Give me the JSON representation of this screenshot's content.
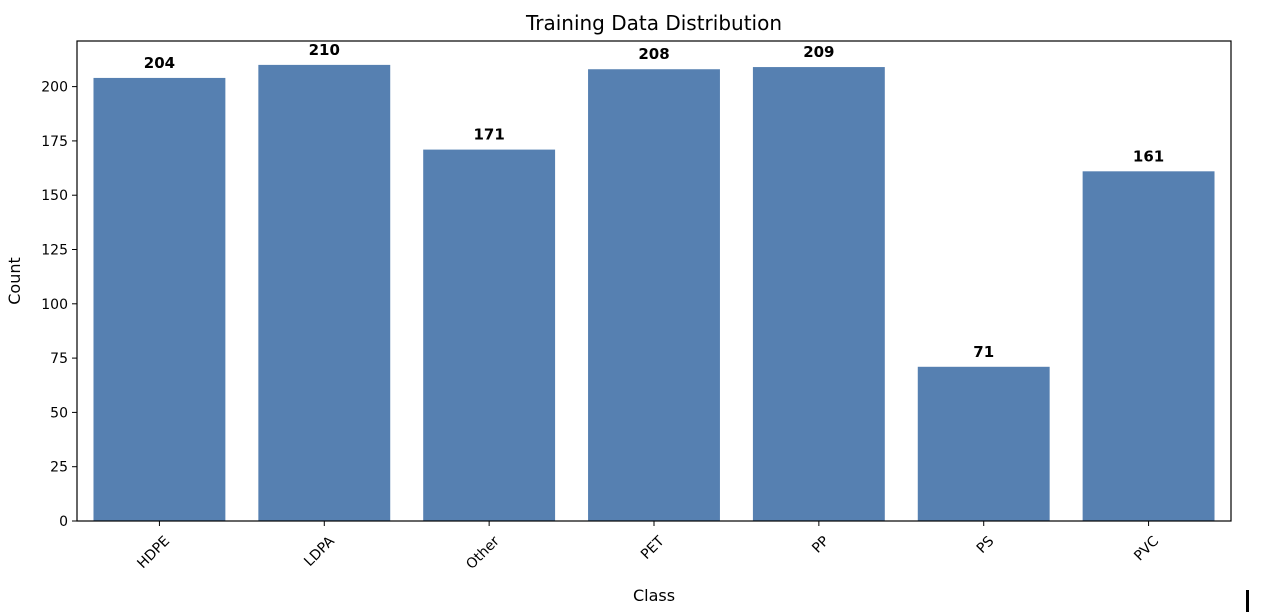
{
  "chart_data": {
    "type": "bar",
    "title": "Training Data Distribution",
    "xlabel": "Class",
    "ylabel": "Count",
    "categories": [
      "HDPE",
      "LDPA",
      "Other",
      "PET",
      "PP",
      "PS",
      "PVC"
    ],
    "values": [
      204,
      210,
      171,
      208,
      209,
      71,
      161
    ],
    "value_labels": [
      "204",
      "210",
      "171",
      "208",
      "209",
      "71",
      "161"
    ],
    "ylim": [
      0,
      221
    ],
    "yticks": [
      0,
      25,
      50,
      75,
      100,
      125,
      150,
      175,
      200
    ],
    "ytick_labels": [
      "0",
      "25",
      "50",
      "75",
      "100",
      "125",
      "150",
      "175",
      "200"
    ],
    "bar_color": "#5680b1",
    "grid": false,
    "legend": "none"
  }
}
